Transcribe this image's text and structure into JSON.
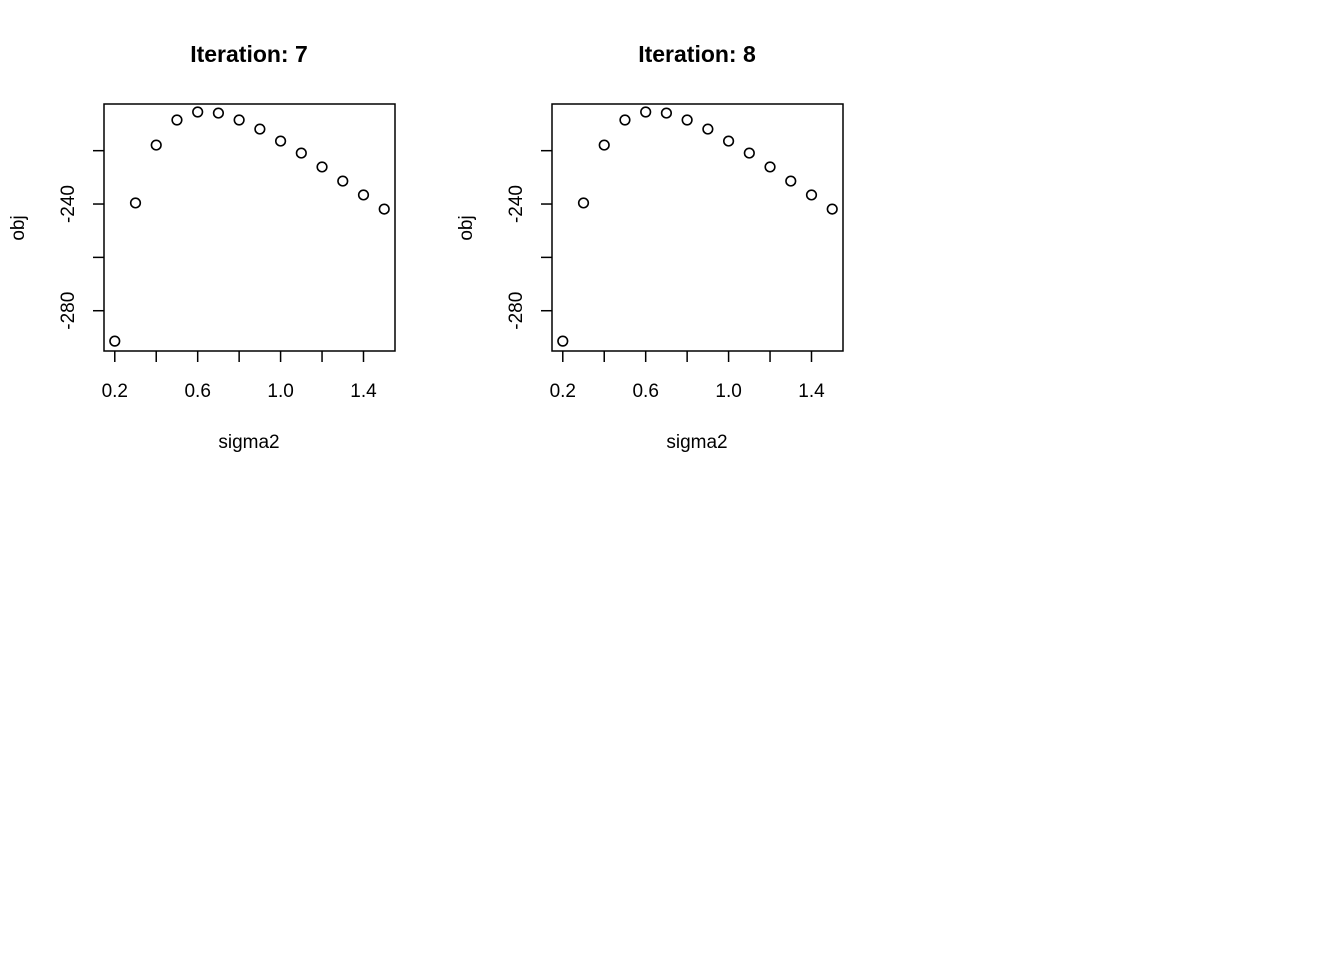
{
  "chart_data": [
    {
      "type": "scatter",
      "title": "Iteration: 7",
      "xlabel": "sigma2",
      "ylabel": "obj",
      "xlim": [
        0.148,
        1.552
      ],
      "ylim": [
        -295.1,
        -202.5
      ],
      "xticks": [
        0.2,
        0.6,
        1.0,
        1.4
      ],
      "xtick_labels": [
        "0.2",
        "0.6",
        "1.0",
        "1.4"
      ],
      "xticks_minor": [
        0.4,
        0.8,
        1.2
      ],
      "yticks": [
        -280,
        -260,
        -240,
        -220
      ],
      "ytick_labels": [
        "-280",
        "",
        "-240",
        ""
      ],
      "grid": false,
      "x": [
        0.2,
        0.3,
        0.4,
        0.5,
        0.6,
        0.7,
        0.8,
        0.9,
        1.0,
        1.1,
        1.2,
        1.3,
        1.4,
        1.5
      ],
      "y": [
        -291.4,
        -239.6,
        -217.9,
        -208.5,
        -205.5,
        -205.9,
        -208.5,
        -211.9,
        -216.4,
        -220.9,
        -226.1,
        -231.4,
        -236.6,
        -241.9
      ]
    },
    {
      "type": "scatter",
      "title": "Iteration: 8",
      "xlabel": "sigma2",
      "ylabel": "obj",
      "xlim": [
        0.148,
        1.552
      ],
      "ylim": [
        -295.1,
        -202.5
      ],
      "xticks": [
        0.2,
        0.6,
        1.0,
        1.4
      ],
      "xtick_labels": [
        "0.2",
        "0.6",
        "1.0",
        "1.4"
      ],
      "xticks_minor": [
        0.4,
        0.8,
        1.2
      ],
      "yticks": [
        -280,
        -260,
        -240,
        -220
      ],
      "ytick_labels": [
        "-280",
        "",
        "-240",
        ""
      ],
      "grid": false,
      "x": [
        0.2,
        0.3,
        0.4,
        0.5,
        0.6,
        0.7,
        0.8,
        0.9,
        1.0,
        1.1,
        1.2,
        1.3,
        1.4,
        1.5
      ],
      "y": [
        -291.4,
        -239.6,
        -217.9,
        -208.5,
        -205.5,
        -205.9,
        -208.5,
        -211.9,
        -216.4,
        -220.9,
        -226.1,
        -231.4,
        -236.6,
        -241.9
      ]
    }
  ]
}
